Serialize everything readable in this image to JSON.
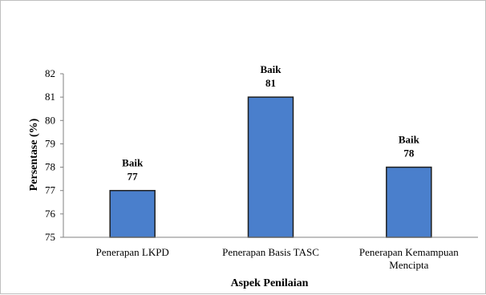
{
  "chart_data": {
    "type": "bar",
    "title": "",
    "xlabel": "Aspek Penilaian",
    "ylabel": "Persentase (%)",
    "ylim": [
      75,
      82
    ],
    "yticks": [
      75,
      76,
      77,
      78,
      79,
      80,
      81,
      82
    ],
    "grid": false,
    "legend": "none",
    "categories": [
      [
        "Penerapan LKPD"
      ],
      [
        "Penerapan Basis TASC"
      ],
      [
        "Penerapan Kemampuan",
        "Mencipta"
      ]
    ],
    "values": [
      77,
      81,
      78
    ],
    "data_labels": [
      {
        "category_label": "Baik",
        "value_label": "77"
      },
      {
        "category_label": "Baik",
        "value_label": "81"
      },
      {
        "category_label": "Baik",
        "value_label": "78"
      }
    ],
    "colors": {
      "bar_fill": "#4a7fcc",
      "bar_stroke": "#1f1f1f",
      "axis": "#808080"
    }
  }
}
